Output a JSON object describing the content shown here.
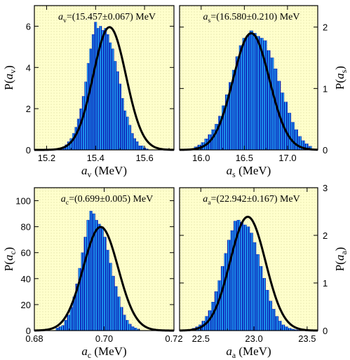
{
  "figure": {
    "background": "#ffffff",
    "plot_background": "#ffffcc",
    "bar_fill": "#1e9bf0",
    "bar_stripe": "#0c1eb4",
    "curve_color": "#000000"
  },
  "chart_data": [
    {
      "type": "bar",
      "panel": "top-left",
      "annotation": {
        "var": "a",
        "sub": "v",
        "text": "=(15.457±0.067) MeV"
      },
      "xlabel": {
        "var": "a",
        "sub": "v",
        "unit": " (MeV)"
      },
      "ylabel": {
        "prefix": "P(",
        "var": "a",
        "sub": "v",
        "suffix": ")"
      },
      "yaxis_side": "left",
      "xlim": [
        15.15,
        15.72
      ],
      "ylim": [
        0,
        7
      ],
      "xticks": [
        15.2,
        15.4,
        15.6
      ],
      "xtick_labels": [
        "15.2",
        "15.4",
        "15.6"
      ],
      "yticks": [
        0,
        2,
        4,
        6
      ],
      "ytick_labels": [
        "0",
        "2",
        "4",
        "6"
      ],
      "fit": {
        "mean": 15.457,
        "sigma": 0.067
      },
      "bins": {
        "edges_start": 15.255,
        "width": 0.01,
        "heights": [
          0.1,
          0.15,
          0.25,
          0.4,
          0.55,
          0.8,
          1.1,
          1.5,
          2.0,
          2.6,
          3.3,
          4.2,
          4.9,
          5.6,
          6.2,
          5.9,
          6.0,
          5.8,
          5.9,
          5.6,
          5.2,
          4.9,
          4.3,
          3.8,
          3.2,
          2.5,
          1.9,
          1.6,
          1.2,
          0.8,
          0.55,
          0.4,
          0.2,
          0.2,
          0.1,
          0.05
        ]
      }
    },
    {
      "type": "bar",
      "panel": "top-right",
      "annotation": {
        "var": "a",
        "sub": "s",
        "text": "=(16.580±0.210) MeV"
      },
      "xlabel": {
        "var": "a",
        "sub": "s",
        "unit": " (MeV)"
      },
      "ylabel": {
        "prefix": "P(",
        "var": "a",
        "sub": "s",
        "suffix": ")"
      },
      "yaxis_side": "right",
      "xlim": [
        15.75,
        17.35
      ],
      "ylim": [
        0,
        2.35
      ],
      "xticks": [
        16.0,
        16.5,
        17.0
      ],
      "xtick_labels": [
        "16.0",
        "16.5",
        "17.0"
      ],
      "yticks": [
        0,
        1,
        2
      ],
      "ytick_labels": [
        "0",
        "1",
        "2"
      ],
      "fit": {
        "mean": 16.58,
        "sigma": 0.21
      },
      "bins": {
        "edges_start": 15.92,
        "width": 0.04,
        "heights": [
          0.05,
          0.08,
          0.12,
          0.18,
          0.25,
          0.33,
          0.42,
          0.55,
          0.72,
          0.9,
          1.1,
          1.3,
          1.52,
          1.7,
          1.82,
          1.86,
          1.94,
          1.9,
          1.85,
          1.82,
          1.78,
          1.62,
          1.5,
          1.32,
          1.12,
          0.93,
          0.78,
          0.6,
          0.45,
          0.33,
          0.22,
          0.15,
          0.1,
          0.06
        ]
      }
    },
    {
      "type": "bar",
      "panel": "bottom-left",
      "annotation": {
        "var": "a",
        "sub": "c",
        "text": "=(0.699±0.005) MeV"
      },
      "xlabel": {
        "var": "a",
        "sub": "c",
        "unit": " (MeV)"
      },
      "ylabel": {
        "prefix": "P(",
        "var": "a",
        "sub": "c",
        "suffix": ")"
      },
      "yaxis_side": "left",
      "xlim": [
        0.68,
        0.72
      ],
      "ylim": [
        0,
        110
      ],
      "xticks": [
        0.68,
        0.7,
        0.72
      ],
      "xtick_labels": [
        "0.68",
        "0.70",
        "0.72"
      ],
      "yticks": [
        0,
        20,
        40,
        60,
        80,
        100
      ],
      "ytick_labels": [
        "0",
        "20",
        "40",
        "60",
        "80",
        "100"
      ],
      "fit": {
        "mean": 0.699,
        "sigma": 0.005
      },
      "bins": {
        "edges_start": 0.6862,
        "width": 0.0008,
        "heights": [
          2,
          3,
          4,
          8,
          12,
          18,
          26,
          36,
          48,
          60,
          72,
          85,
          92,
          90,
          85,
          82,
          80,
          72,
          62,
          52,
          42,
          34,
          26,
          18,
          12,
          8,
          5,
          3,
          2,
          1
        ]
      }
    },
    {
      "type": "bar",
      "panel": "bottom-right",
      "annotation": {
        "var": "a",
        "sub": "a",
        "text": "=(22.942±0.167) MeV"
      },
      "xlabel": {
        "var": "a",
        "sub": "a",
        "unit": " (MeV)"
      },
      "ylabel": {
        "prefix": "P(",
        "var": "a",
        "sub": "a",
        "suffix": ")"
      },
      "yaxis_side": "right",
      "xlim": [
        22.3,
        23.6
      ],
      "ylim": [
        0,
        3
      ],
      "xticks": [
        22.5,
        23.0,
        23.5
      ],
      "xtick_labels": [
        "22.5",
        "23.0",
        "23.5"
      ],
      "yticks": [
        0,
        1,
        2,
        3
      ],
      "ytick_labels": [
        "0",
        "1",
        "2",
        "3"
      ],
      "fit": {
        "mean": 22.942,
        "sigma": 0.167
      },
      "bins": {
        "edges_start": 22.42,
        "width": 0.03,
        "heights": [
          0.05,
          0.08,
          0.12,
          0.2,
          0.3,
          0.42,
          0.6,
          0.82,
          1.05,
          1.35,
          1.62,
          1.9,
          2.1,
          2.3,
          2.32,
          2.28,
          2.22,
          2.18,
          2.05,
          1.85,
          1.6,
          1.35,
          1.1,
          0.85,
          0.62,
          0.45,
          0.3,
          0.2,
          0.12,
          0.08,
          0.05,
          0.03,
          0.02,
          0.01
        ]
      }
    }
  ]
}
